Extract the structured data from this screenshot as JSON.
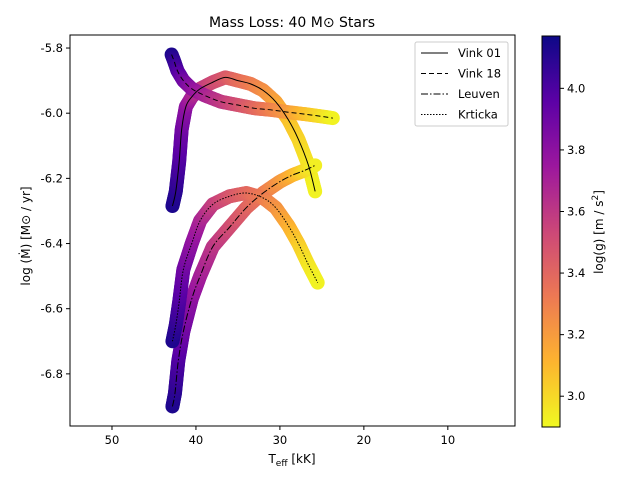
{
  "chart_data": {
    "type": "line",
    "title": "Mass Loss: 40 M⊙ Stars",
    "xlabel": "T_eff [kK]",
    "xlabel_main": "T",
    "xlabel_sub": "eff",
    "xlabel_unit": " [kK]",
    "ylabel": "log (Ṁ) [M⊙ / yr]",
    "xlim": [
      55,
      2
    ],
    "ylim": [
      -6.96,
      -5.76
    ],
    "x_ticks": [
      50,
      40,
      30,
      20,
      10
    ],
    "y_ticks": [
      -5.8,
      -6.0,
      -6.2,
      -6.4,
      -6.6,
      -6.8
    ],
    "legend_position": "top-right",
    "colorbar": {
      "label": "log(g) [m / s²]",
      "label_main": "log(g) [m / s",
      "label_sup": "2",
      "label_close": "]",
      "range": [
        2.9,
        4.17
      ],
      "ticks": [
        3.0,
        3.2,
        3.4,
        3.6,
        3.8,
        4.0
      ],
      "colormap": "plasma_r",
      "stops": [
        "#f0f921",
        "#fdb42f",
        "#ed7953",
        "#cc4778",
        "#9c179e",
        "#5c01a6",
        "#0d0887"
      ]
    },
    "series": [
      {
        "name": "Vink 01",
        "dash": "solid",
        "points": [
          [
            42.8,
            -6.285
          ],
          [
            42.4,
            -6.24
          ],
          [
            42.0,
            -6.15
          ],
          [
            41.7,
            -6.05
          ],
          [
            41.2,
            -5.98
          ],
          [
            40.5,
            -5.95
          ],
          [
            39.5,
            -5.925
          ],
          [
            38.0,
            -5.905
          ],
          [
            36.5,
            -5.89
          ],
          [
            35.0,
            -5.9
          ],
          [
            33.5,
            -5.91
          ],
          [
            32.0,
            -5.93
          ],
          [
            30.5,
            -5.965
          ],
          [
            29.0,
            -6.02
          ],
          [
            27.8,
            -6.08
          ],
          [
            26.6,
            -6.16
          ],
          [
            25.8,
            -6.24
          ]
        ],
        "logg": [
          4.13,
          4.1,
          4.0,
          3.9,
          3.8,
          3.7,
          3.6,
          3.52,
          3.46,
          3.38,
          3.32,
          3.25,
          3.18,
          3.08,
          3.02,
          2.96,
          2.92
        ]
      },
      {
        "name": "Vink 18",
        "dash": "dashed",
        "points": [
          [
            42.9,
            -5.82
          ],
          [
            42.6,
            -5.84
          ],
          [
            42.2,
            -5.87
          ],
          [
            41.5,
            -5.9
          ],
          [
            40.5,
            -5.925
          ],
          [
            39.0,
            -5.945
          ],
          [
            37.0,
            -5.965
          ],
          [
            35.0,
            -5.975
          ],
          [
            33.0,
            -5.985
          ],
          [
            31.0,
            -5.99
          ],
          [
            29.0,
            -5.997
          ],
          [
            27.0,
            -6.003
          ],
          [
            25.0,
            -6.01
          ],
          [
            23.7,
            -6.015
          ]
        ],
        "logg": [
          4.13,
          4.08,
          4.0,
          3.9,
          3.8,
          3.7,
          3.6,
          3.5,
          3.4,
          3.3,
          3.2,
          3.08,
          2.98,
          2.92
        ]
      },
      {
        "name": "Leuven",
        "dash": "dashdot",
        "points": [
          [
            42.8,
            -6.9
          ],
          [
            42.5,
            -6.86
          ],
          [
            42.1,
            -6.76
          ],
          [
            41.5,
            -6.67
          ],
          [
            40.5,
            -6.57
          ],
          [
            39.5,
            -6.5
          ],
          [
            38.0,
            -6.41
          ],
          [
            36.0,
            -6.35
          ],
          [
            34.0,
            -6.29
          ],
          [
            32.0,
            -6.245
          ],
          [
            30.0,
            -6.21
          ],
          [
            28.5,
            -6.19
          ],
          [
            27.0,
            -6.175
          ],
          [
            25.8,
            -6.16
          ]
        ],
        "logg": [
          4.13,
          4.1,
          4.0,
          3.9,
          3.8,
          3.72,
          3.62,
          3.52,
          3.42,
          3.32,
          3.22,
          3.12,
          3.0,
          2.93
        ]
      },
      {
        "name": "Krticka",
        "dash": "dotted",
        "points": [
          [
            42.8,
            -6.7
          ],
          [
            42.4,
            -6.65
          ],
          [
            42.0,
            -6.58
          ],
          [
            41.5,
            -6.48
          ],
          [
            40.5,
            -6.4
          ],
          [
            39.5,
            -6.33
          ],
          [
            38.0,
            -6.28
          ],
          [
            36.0,
            -6.255
          ],
          [
            34.0,
            -6.245
          ],
          [
            32.0,
            -6.26
          ],
          [
            30.5,
            -6.29
          ],
          [
            29.0,
            -6.345
          ],
          [
            27.8,
            -6.4
          ],
          [
            26.7,
            -6.46
          ],
          [
            25.5,
            -6.52
          ]
        ],
        "logg": [
          4.13,
          4.08,
          4.0,
          3.9,
          3.8,
          3.7,
          3.58,
          3.48,
          3.4,
          3.32,
          3.24,
          3.14,
          3.05,
          2.97,
          2.92
        ]
      }
    ]
  }
}
